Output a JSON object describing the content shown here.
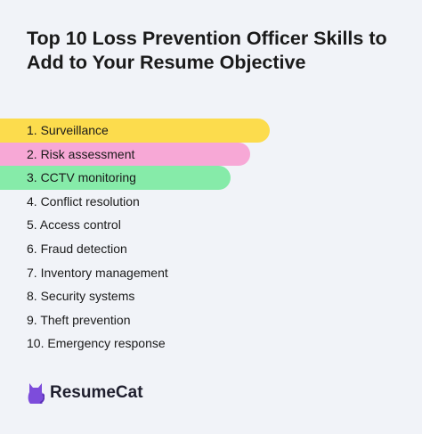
{
  "header": {
    "title": "Top 10 Loss Prevention Officer Skills to Add to Your Resume Objective"
  },
  "list": {
    "items": [
      "1. Surveillance",
      "2. Risk assessment",
      "3. CCTV monitoring",
      "4. Conflict resolution",
      "5. Access control",
      "6. Fraud detection",
      "7. Inventory management",
      "8. Security systems",
      "9. Theft prevention",
      "10. Emergency response"
    ]
  },
  "footer": {
    "brand": "ResumeCat"
  }
}
